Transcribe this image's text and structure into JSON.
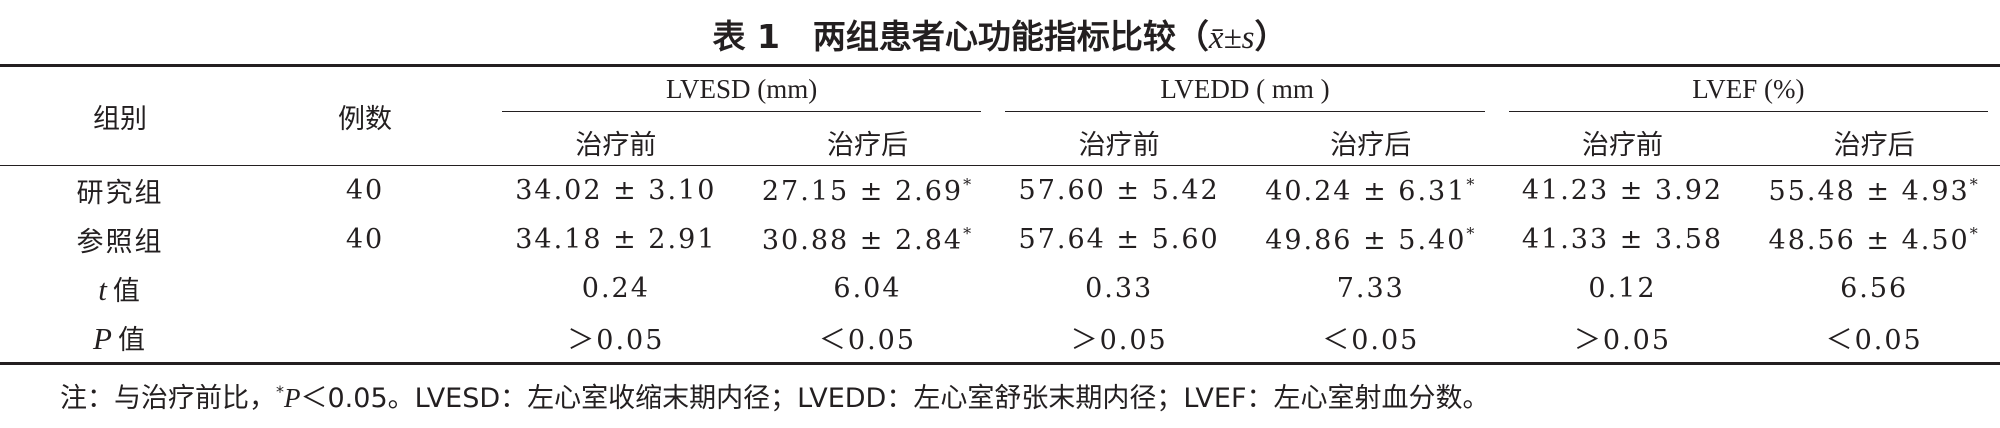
{
  "title": {
    "label": "表 1　两组患者心功能指标比较（",
    "var": "x̄±s",
    "close": "）"
  },
  "table": {
    "header": {
      "group": "组别",
      "count": "例数",
      "metrics": [
        "LVESD (mm)",
        "LVEDD ( mm )",
        "LVEF (%)"
      ],
      "sub": [
        "治疗前",
        "治疗后",
        "治疗前",
        "治疗后",
        "治疗前",
        "治疗后"
      ]
    },
    "rows": [
      {
        "label": {
          "text": "研究组"
        },
        "cells": [
          "40",
          "34.02 ± 3.10",
          {
            "text": "27.15 ± 2.69",
            "sup": "*"
          },
          "57.60 ± 5.42",
          {
            "text": "40.24 ± 6.31",
            "sup": "*"
          },
          "41.23 ± 3.92",
          {
            "text": "55.48 ± 4.93",
            "sup": "*"
          }
        ]
      },
      {
        "label": {
          "text": "参照组"
        },
        "cells": [
          "40",
          "34.18 ± 2.91",
          {
            "text": "30.88 ± 2.84",
            "sup": "*"
          },
          "57.64 ± 5.60",
          {
            "text": "49.86 ± 5.40",
            "sup": "*"
          },
          "41.33 ± 3.58",
          {
            "text": "48.56 ± 4.50",
            "sup": "*"
          }
        ]
      },
      {
        "label": {
          "var": "t",
          "text": "值"
        },
        "cells": [
          "",
          "0.24",
          "6.04",
          "0.33",
          "7.33",
          "0.12",
          "6.56"
        ]
      },
      {
        "label": {
          "var": "P",
          "text": "值"
        },
        "cells": [
          "",
          "＞0.05",
          "＜0.05",
          "＞0.05",
          "＜0.05",
          "＞0.05",
          "＜0.05"
        ]
      }
    ]
  },
  "note": {
    "prefix": "注：与治疗前比，",
    "sup": "*",
    "var": "P",
    "suffix": "＜0.05。LVESD：左心室收缩末期内径；LVEDD：左心室舒张末期内径；LVEF：左心室射血分数。"
  }
}
